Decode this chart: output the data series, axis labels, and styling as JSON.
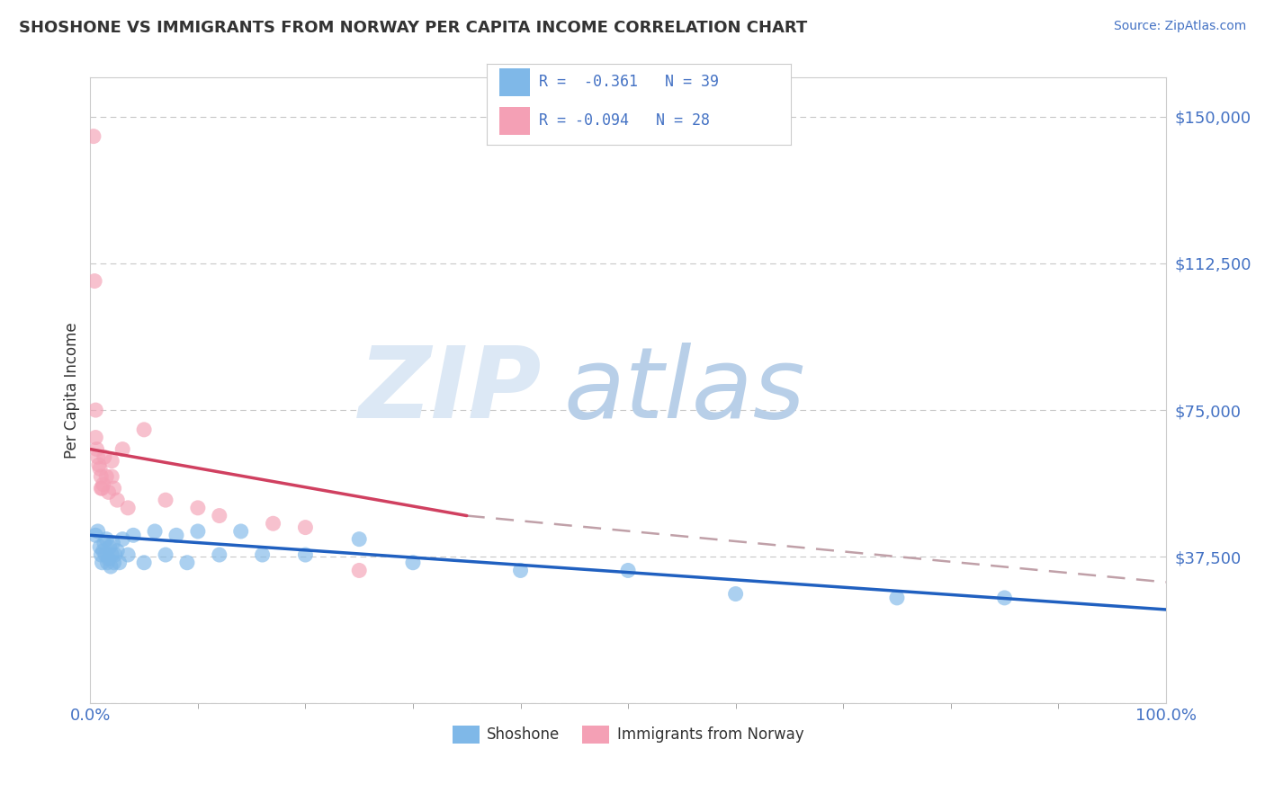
{
  "title": "SHOSHONE VS IMMIGRANTS FROM NORWAY PER CAPITA INCOME CORRELATION CHART",
  "source": "Source: ZipAtlas.com",
  "ylabel": "Per Capita Income",
  "xlim": [
    0.0,
    100.0
  ],
  "ylim": [
    0,
    160000
  ],
  "yticks": [
    0,
    37500,
    75000,
    112500,
    150000
  ],
  "ytick_labels": [
    "",
    "$37,500",
    "$75,000",
    "$112,500",
    "$150,000"
  ],
  "xtick_labels": [
    "0.0%",
    "100.0%"
  ],
  "legend_label1": "Shoshone",
  "legend_label2": "Immigrants from Norway",
  "color_blue": "#7fb8e8",
  "color_pink": "#f4a0b5",
  "color_blue_line": "#2060c0",
  "color_pink_line": "#d04060",
  "color_title": "#333333",
  "color_source": "#4472c4",
  "color_axis_labels": "#4472c4",
  "color_legend_rval": "#4472c4",
  "background": "#ffffff",
  "watermark_color": "#dce8f5",
  "grid_color": "#c8c8c8",
  "dashed_trend_color": "#c0a0a8",
  "blue_scatter_x": [
    0.5,
    0.7,
    0.9,
    1.0,
    1.1,
    1.2,
    1.3,
    1.4,
    1.5,
    1.6,
    1.7,
    1.8,
    1.9,
    2.0,
    2.1,
    2.2,
    2.3,
    2.5,
    2.7,
    3.0,
    3.5,
    4.0,
    5.0,
    6.0,
    7.0,
    8.0,
    9.0,
    10.0,
    12.0,
    14.0,
    16.0,
    20.0,
    25.0,
    30.0,
    40.0,
    50.0,
    60.0,
    75.0,
    85.0
  ],
  "blue_scatter_y": [
    43000,
    44000,
    40000,
    38000,
    36000,
    39000,
    41000,
    38000,
    42000,
    36000,
    37000,
    40000,
    35000,
    38000,
    41000,
    36000,
    38000,
    39000,
    36000,
    42000,
    38000,
    43000,
    36000,
    44000,
    38000,
    43000,
    36000,
    44000,
    38000,
    44000,
    38000,
    38000,
    42000,
    36000,
    34000,
    34000,
    28000,
    27000,
    27000
  ],
  "pink_scatter_x": [
    0.3,
    0.4,
    0.5,
    0.5,
    0.6,
    0.7,
    0.8,
    0.9,
    1.0,
    1.0,
    1.1,
    1.2,
    1.3,
    1.5,
    1.7,
    2.0,
    2.0,
    2.2,
    2.5,
    3.0,
    3.5,
    5.0,
    7.0,
    10.0,
    12.0,
    17.0,
    20.0,
    25.0
  ],
  "pink_scatter_y": [
    145000,
    108000,
    75000,
    68000,
    65000,
    63000,
    61000,
    60000,
    58000,
    55000,
    55000,
    56000,
    63000,
    58000,
    54000,
    62000,
    58000,
    55000,
    52000,
    65000,
    50000,
    70000,
    52000,
    50000,
    48000,
    46000,
    45000,
    34000
  ],
  "blue_line_x0": 0,
  "blue_line_x1": 100,
  "blue_line_y0": 43000,
  "blue_line_y1": 24000,
  "pink_line_x0": 0,
  "pink_line_x1": 35,
  "pink_line_y0": 65000,
  "pink_line_y1": 48000,
  "pink_dash_x0": 35,
  "pink_dash_x1": 100,
  "pink_dash_y0": 48000,
  "pink_dash_y1": 31000
}
